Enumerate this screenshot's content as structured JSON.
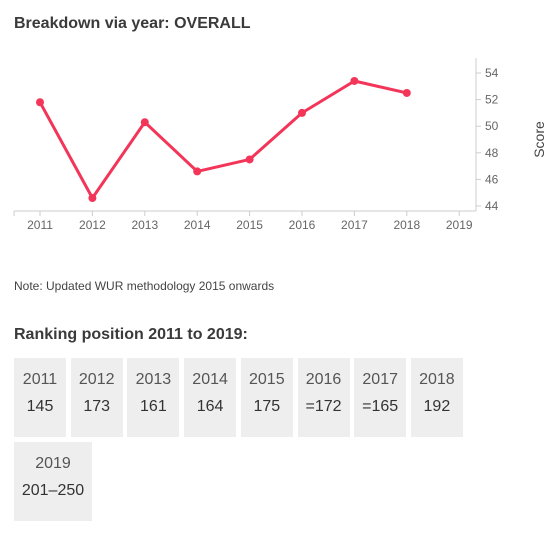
{
  "header": {
    "title": "Breakdown via year: OVERALL"
  },
  "chart_data": {
    "type": "line",
    "title": "Breakdown via year: OVERALL",
    "xlabel": "",
    "ylabel": "Score",
    "x_ticks": [
      "2011",
      "2012",
      "2013",
      "2014",
      "2015",
      "2016",
      "2017",
      "2018",
      "2019"
    ],
    "y_ticks": [
      "44",
      "46",
      "48",
      "50",
      "52",
      "54"
    ],
    "ylim": [
      43.5,
      55
    ],
    "series": [
      {
        "color": "#f23558",
        "points": [
          {
            "x": "2011",
            "y": 51.8
          },
          {
            "x": "2012",
            "y": 44.6
          },
          {
            "x": "2013",
            "y": 50.3
          },
          {
            "x": "2014",
            "y": 46.6
          },
          {
            "x": "2015",
            "y": 47.5
          },
          {
            "x": "2016",
            "y": 51.0
          },
          {
            "x": "2017",
            "y": 53.4
          },
          {
            "x": "2018",
            "y": 52.5
          }
        ]
      }
    ],
    "y_axis_position": "right",
    "grid": false
  },
  "note": "Note: Updated WUR methodology 2015 onwards",
  "ranking": {
    "title": "Ranking position 2011 to 2019:",
    "items": [
      {
        "year": "2011",
        "position": "145"
      },
      {
        "year": "2012",
        "position": "173"
      },
      {
        "year": "2013",
        "position": "161"
      },
      {
        "year": "2014",
        "position": "164"
      },
      {
        "year": "2015",
        "position": "175"
      },
      {
        "year": "2016",
        "position": "=172"
      },
      {
        "year": "2017",
        "position": "=165"
      },
      {
        "year": "2018",
        "position": "192"
      },
      {
        "year": "2019",
        "position": "201–250"
      }
    ]
  },
  "colors": {
    "line": "#f23558",
    "tile_bg": "#eeeeee",
    "axis": "#cccccc"
  }
}
